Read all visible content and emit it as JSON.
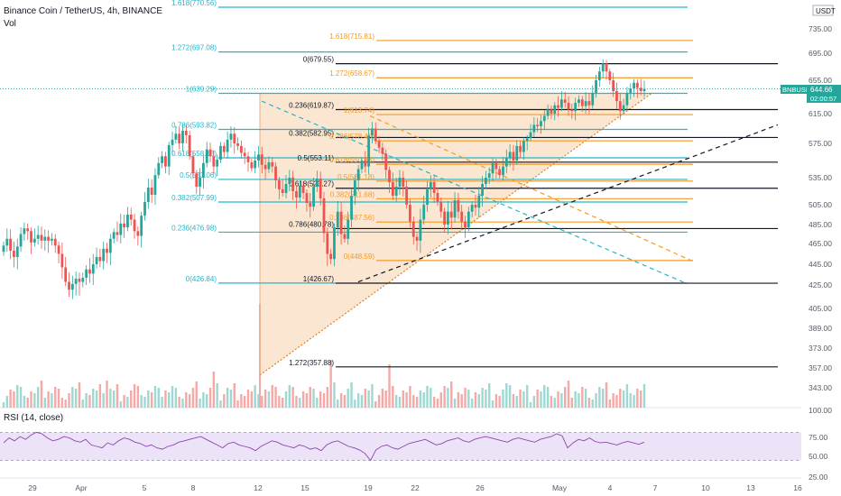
{
  "header": {
    "title": "Binance Coin / TetherUS, 4h, BINANCE",
    "vol_label": "Vol",
    "rsi_label": "RSI (14, close)",
    "currency": "USDT"
  },
  "price_tag": {
    "symbol": "BNBUSDT",
    "price": "644.66",
    "timer": "02:00:57"
  },
  "colors": {
    "up": "#26a69a",
    "down": "#ef5350",
    "fib_teal": "#26b5c9",
    "fib_orange": "#f59a23",
    "fib_black": "#131722",
    "triangle_fill": "#f7c99a",
    "rsi_line": "#8e44ad",
    "rsi_band": "#ece3f8",
    "tag_bg": "#26a69a"
  },
  "price_axis": {
    "ticks": [
      735,
      695,
      655,
      615,
      575,
      535,
      505,
      485,
      465,
      445,
      425,
      405,
      389,
      373,
      357,
      343
    ]
  },
  "vol_axis": {
    "ticks": [
      "100.00"
    ]
  },
  "rsi_axis": {
    "ticks": [
      "75.00",
      "50.00",
      "25.00"
    ]
  },
  "time_axis": {
    "ticks": [
      "29",
      "Apr",
      "5",
      "8",
      "12",
      "15",
      "19",
      "22",
      "26",
      "May",
      "4",
      "7",
      "10",
      "13",
      "16"
    ]
  },
  "chart_data": {
    "type": "candlestick",
    "title": "Binance Coin / TetherUS, 4h, BINANCE",
    "symbol": "BNBUSDT",
    "last_price": 644.66,
    "fib_sets": [
      {
        "name": "teal",
        "color": "#26b5c9",
        "levels": [
          {
            "label": "1.618(770.56)",
            "value": 770.56
          },
          {
            "label": "1.272(697.08)",
            "value": 697.08
          },
          {
            "label": "1(639.29)",
            "value": 639.29
          },
          {
            "label": "0.786(593.82)",
            "value": 593.82
          },
          {
            "label": "0.618(558.13)",
            "value": 558.13
          },
          {
            "label": "0.5(533.06)",
            "value": 533.06
          },
          {
            "label": "0.382(507.99)",
            "value": 507.99
          },
          {
            "label": "0.236(476.98)",
            "value": 476.98
          },
          {
            "label": "0(426.84)",
            "value": 426.84
          }
        ]
      },
      {
        "name": "black",
        "color": "#131722",
        "levels": [
          {
            "label": "0(679.55)",
            "value": 679.55
          },
          {
            "label": "0.236(619.87)",
            "value": 619.87
          },
          {
            "label": "0.382(582.95)",
            "value": 582.95
          },
          {
            "label": "0.5(553.11)",
            "value": 553.11
          },
          {
            "label": "0.618(523.27)",
            "value": 523.27
          },
          {
            "label": "0.786(480.78)",
            "value": 480.78
          },
          {
            "label": "1(426.67)",
            "value": 426.67
          },
          {
            "label": "1.272(357.88)",
            "value": 357.88
          }
        ]
      },
      {
        "name": "orange",
        "color": "#f59a23",
        "levels": [
          {
            "label": "1.618(715.81)",
            "value": 715.81
          },
          {
            "label": "1.272(658.67)",
            "value": 658.67
          },
          {
            "label": "1(613.74)",
            "value": 613.74
          },
          {
            "label": "0.786(578.40)",
            "value": 578.4
          },
          {
            "label": "0.618(550.63)",
            "value": 550.63
          },
          {
            "label": "0.5(531.18)",
            "value": 531.18
          },
          {
            "label": "0.382(511.68)",
            "value": 511.68
          },
          {
            "label": "0.236(487.56)",
            "value": 487.56
          },
          {
            "label": "0(448.59)",
            "value": 448.59
          }
        ]
      }
    ],
    "candles_close": [
      463,
      470,
      458,
      452,
      462,
      475,
      481,
      478,
      466,
      470,
      474,
      468,
      472,
      468,
      470,
      463,
      455,
      442,
      428,
      421,
      426,
      431,
      428,
      432,
      440,
      436,
      445,
      452,
      448,
      460,
      456,
      470,
      477,
      474,
      486,
      482,
      495,
      490,
      478,
      473,
      494,
      508,
      524,
      516,
      538,
      552,
      560,
      548,
      573,
      580,
      588,
      575,
      592,
      586,
      560,
      540,
      525,
      535,
      552,
      568,
      560,
      548,
      556,
      572,
      565,
      580,
      588,
      575,
      572,
      564,
      560,
      553,
      546,
      555,
      562,
      550,
      545,
      553,
      548,
      532,
      522,
      518,
      528,
      535,
      520,
      513,
      526,
      518,
      507,
      503,
      525,
      534,
      512,
      476,
      455,
      450,
      482,
      498,
      475,
      470,
      490,
      515,
      532,
      545,
      555,
      548,
      586,
      595,
      578,
      570,
      563,
      544,
      530,
      515,
      525,
      535,
      525,
      505,
      488,
      472,
      468,
      490,
      505,
      522,
      530,
      518,
      508,
      498,
      485,
      498,
      492,
      510,
      498,
      488,
      482,
      498,
      505,
      502,
      515,
      528,
      535,
      540,
      552,
      545,
      538,
      548,
      558,
      565,
      555,
      572,
      565,
      578,
      582,
      590,
      600,
      598,
      605,
      612,
      620,
      615,
      625,
      622,
      632,
      628,
      620,
      618,
      628,
      632,
      624,
      630,
      625,
      640,
      655,
      668,
      680,
      668,
      655,
      642,
      630,
      618,
      625,
      640,
      645,
      652,
      646,
      642,
      644.66
    ],
    "volume_pattern": "variable, spikes near Apr 12 and Apr 23",
    "rsi": [
      55,
      62,
      58,
      64,
      60,
      66,
      70,
      68,
      62,
      58,
      60,
      64,
      62,
      58,
      56,
      60,
      52,
      50,
      48,
      55,
      52,
      58,
      62,
      60,
      56,
      54,
      50,
      52,
      48,
      46,
      50,
      52,
      56,
      58,
      60,
      62,
      64,
      60,
      56,
      52,
      48,
      54,
      56,
      52,
      50,
      48,
      44,
      50,
      54,
      58,
      56,
      52,
      50,
      48,
      52,
      50,
      46,
      48,
      44,
      52,
      56,
      58,
      54,
      50,
      48,
      45,
      40,
      30,
      45,
      50,
      52,
      48,
      46,
      50,
      54,
      56,
      58,
      60,
      56,
      52,
      54,
      58,
      60,
      62,
      58,
      56,
      60,
      62,
      64,
      62,
      60,
      58,
      56,
      60,
      62,
      60,
      58,
      56,
      60,
      62,
      64,
      68,
      65,
      48,
      55,
      60,
      58,
      62,
      57,
      55,
      56,
      54,
      52,
      55,
      57,
      55,
      53,
      56
    ],
    "rsi_range": [
      0,
      100
    ],
    "rsi_bands": [
      30,
      70
    ],
    "ylim": [
      343,
      745
    ]
  }
}
